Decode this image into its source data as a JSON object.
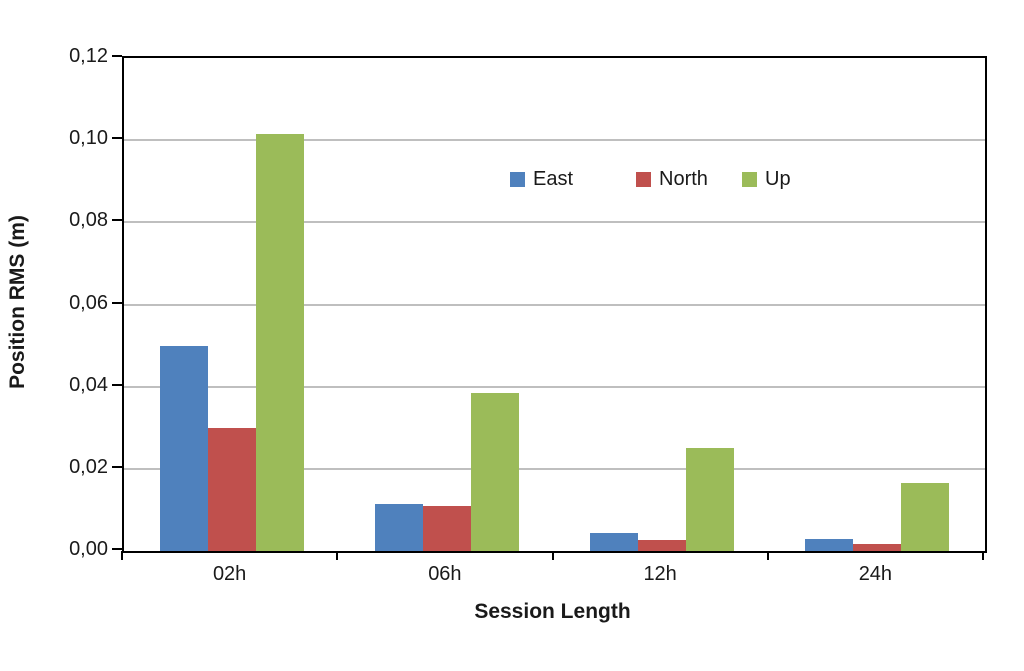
{
  "chart_data": {
    "type": "bar",
    "title": "",
    "xlabel": "Session Length",
    "ylabel": "Position RMS (m)",
    "categories": [
      "02h",
      "06h",
      "12h",
      "24h"
    ],
    "series": [
      {
        "name": "East",
        "color": "#4F81BD",
        "values": [
          0.05,
          0.0115,
          0.0045,
          0.003
        ]
      },
      {
        "name": "North",
        "color": "#C0504D",
        "values": [
          0.03,
          0.011,
          0.0027,
          0.0017
        ]
      },
      {
        "name": "Up",
        "color": "#9BBB59",
        "values": [
          0.1015,
          0.0385,
          0.025,
          0.0165
        ]
      }
    ],
    "ylim": [
      0,
      0.12
    ],
    "ytick_step": 0.02,
    "ytick_labels": [
      "0,00",
      "0,02",
      "0,04",
      "0,06",
      "0,08",
      "0,10",
      "0,12"
    ],
    "decimal_separator": ",",
    "grid": true,
    "gridline_color": "#BFBFBF",
    "axis_color": "#000000",
    "legend_position": "inside-top-center",
    "legend_entries": [
      "East",
      "North",
      "Up"
    ]
  }
}
